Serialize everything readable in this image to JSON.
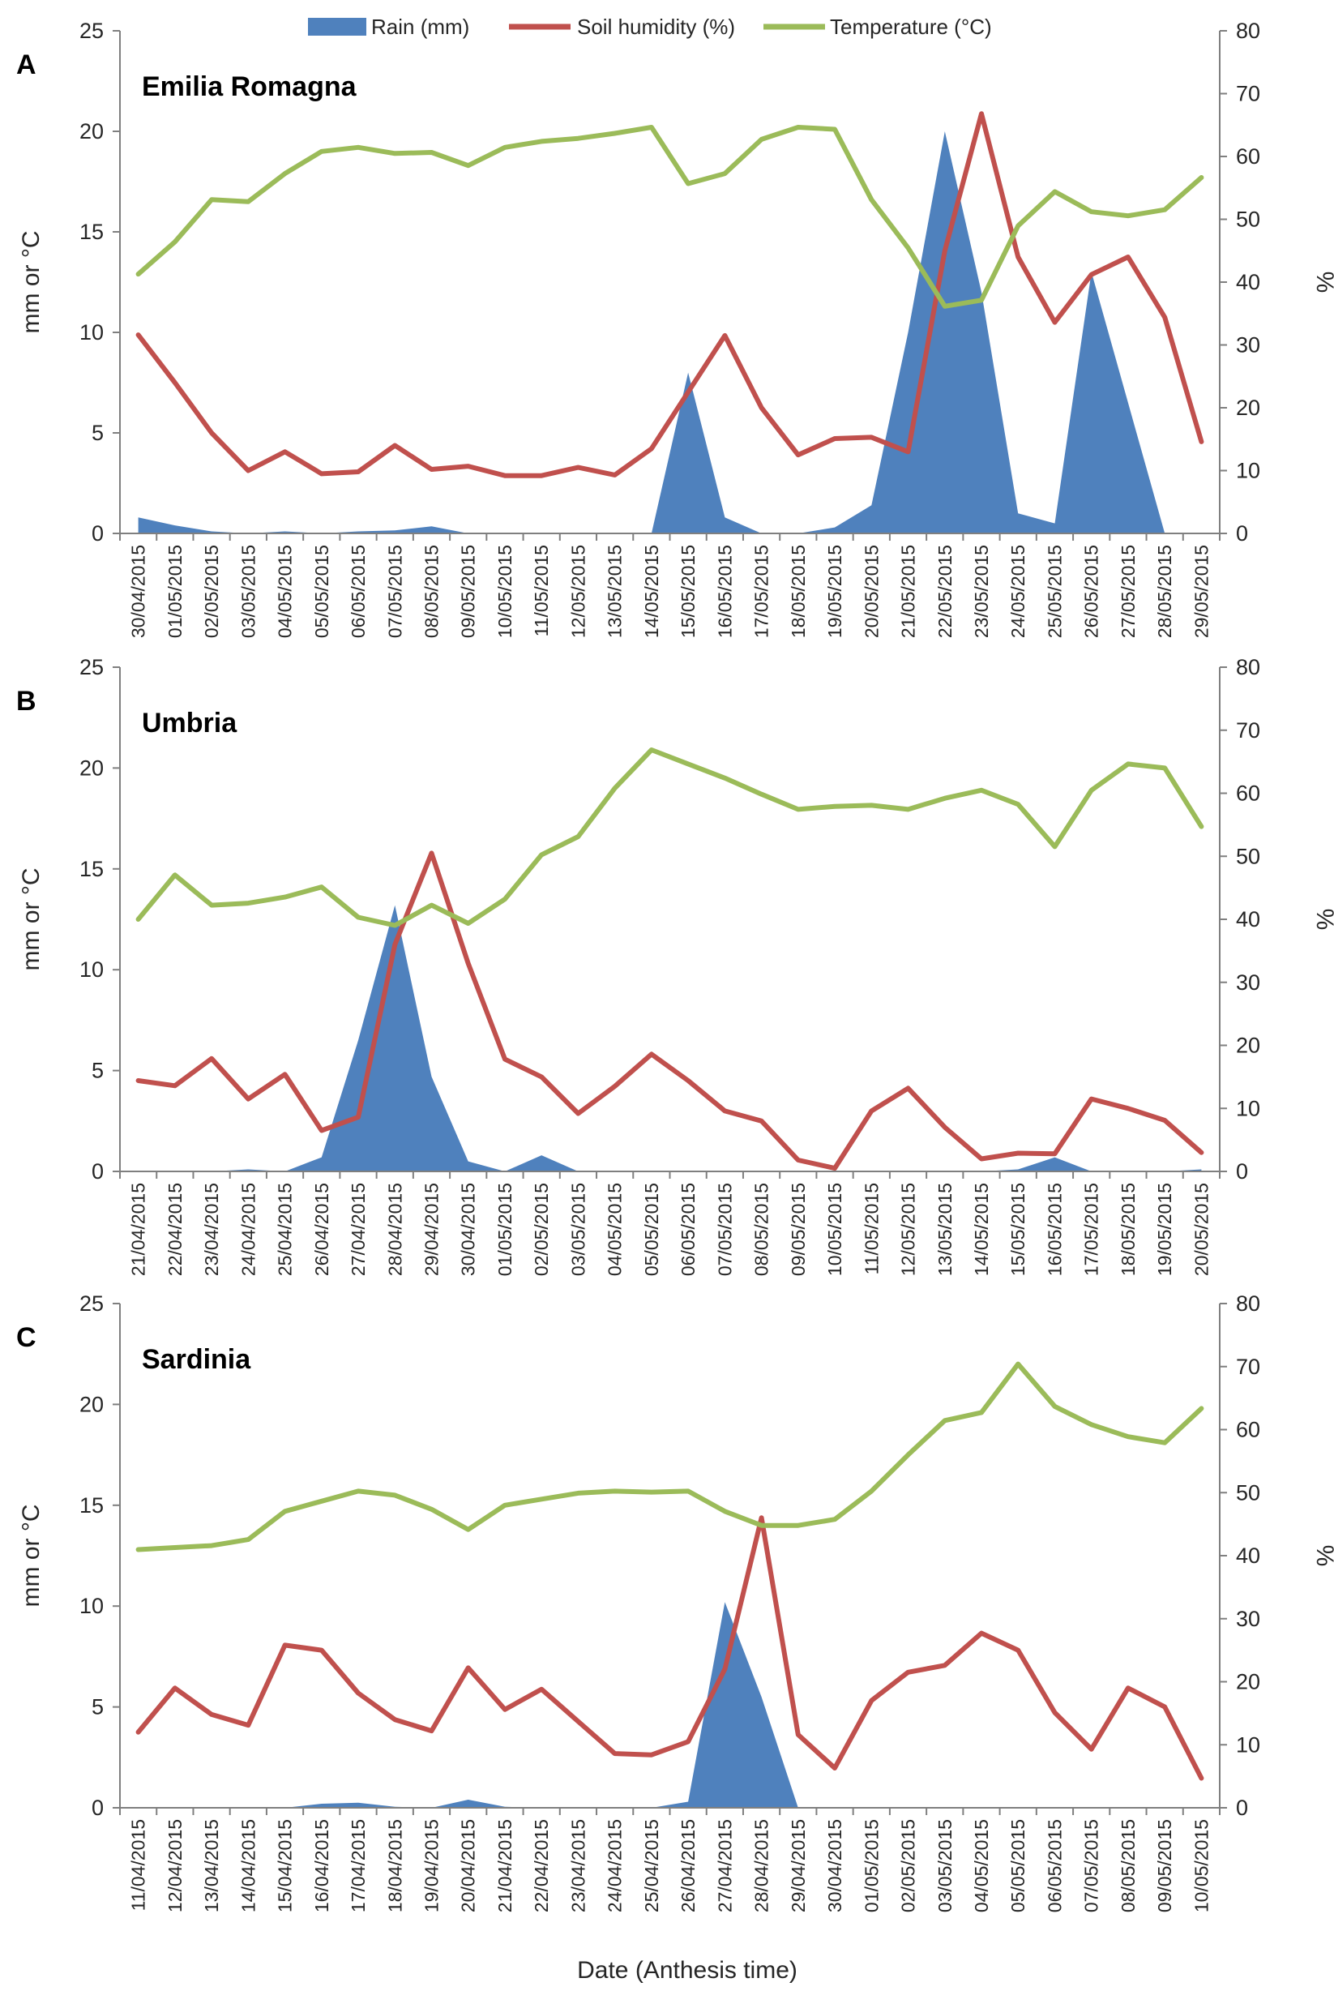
{
  "legend": [
    {
      "name": "Rain (mm)",
      "color": "#4f81bd",
      "kind": "area"
    },
    {
      "name": "Soil humidity (%)",
      "color": "#c0504d",
      "kind": "line"
    },
    {
      "name": "Temperature (°C)",
      "color": "#9bbb59",
      "kind": "line"
    }
  ],
  "x_title": "Date (Anthesis time)",
  "chart_data": [
    {
      "type": "area",
      "panel": "A",
      "title": "Emilia Romagna",
      "ylabel_left": "mm or °C",
      "ylabel_right": "%",
      "ylim_left": [
        0,
        25
      ],
      "ylim_right": [
        0,
        80
      ],
      "yticks_left": [
        "0",
        "5",
        "10",
        "15",
        "20",
        "25"
      ],
      "yticks_right": [
        "0",
        "10",
        "20",
        "30",
        "40",
        "50",
        "60",
        "70",
        "80"
      ],
      "dates": [
        "30/04/2015",
        "01/05/2015",
        "02/05/2015",
        "03/05/2015",
        "04/05/2015",
        "05/05/2015",
        "06/05/2015",
        "07/05/2015",
        "08/05/2015",
        "09/05/2015",
        "10/05/2015",
        "11/05/2015",
        "12/05/2015",
        "13/05/2015",
        "14/05/2015",
        "15/05/2015",
        "16/05/2015",
        "17/05/2015",
        "18/05/2015",
        "19/05/2015",
        "20/05/2015",
        "21/05/2015",
        "22/05/2015",
        "23/05/2015",
        "24/05/2015",
        "25/05/2015",
        "26/05/2015",
        "27/05/2015",
        "28/05/2015",
        "29/05/2015"
      ],
      "rain": [
        0.8,
        0.4,
        0.1,
        0,
        0.1,
        0,
        0.1,
        0.15,
        0.35,
        0,
        0,
        0,
        0,
        0,
        0,
        8.0,
        0.8,
        0,
        0,
        0.3,
        1.4,
        10.0,
        20.0,
        12.0,
        1.0,
        0.5,
        13.0,
        6.5,
        0,
        null
      ],
      "humidity": [
        31.6,
        24.0,
        16.0,
        10.0,
        13.0,
        9.5,
        9.8,
        14.0,
        10.2,
        10.7,
        9.2,
        9.2,
        10.5,
        9.3,
        13.5,
        22.5,
        31.5,
        20.0,
        12.5,
        15.1,
        15.3,
        13.0,
        45.0,
        66.8,
        44.0,
        33.6,
        41.2,
        44.0,
        34.4,
        14.6
      ],
      "temperature": [
        12.9,
        14.5,
        16.6,
        16.5,
        17.9,
        19.0,
        19.2,
        18.9,
        18.95,
        18.3,
        19.2,
        19.5,
        19.65,
        19.9,
        20.2,
        17.4,
        17.9,
        19.6,
        20.2,
        20.1,
        16.6,
        14.2,
        11.3,
        11.6,
        15.3,
        17.0,
        16.0,
        15.8,
        16.1,
        17.7
      ]
    },
    {
      "type": "area",
      "panel": "B",
      "title": "Umbria",
      "ylabel_left": "mm or °C",
      "ylabel_right": "%",
      "ylim_left": [
        0,
        25
      ],
      "ylim_right": [
        0,
        80
      ],
      "yticks_left": [
        "0",
        "5",
        "10",
        "15",
        "20",
        "25"
      ],
      "yticks_right": [
        "0",
        "10",
        "20",
        "30",
        "40",
        "50",
        "60",
        "70",
        "80"
      ],
      "dates": [
        "21/04/2015",
        "22/04/2015",
        "23/04/2015",
        "24/04/2015",
        "25/04/2015",
        "26/04/2015",
        "27/04/2015",
        "28/04/2015",
        "29/04/2015",
        "30/04/2015",
        "01/05/2015",
        "02/05/2015",
        "03/05/2015",
        "04/05/2015",
        "05/05/2015",
        "06/05/2015",
        "07/05/2015",
        "08/05/2015",
        "09/05/2015",
        "10/05/2015",
        "11/05/2015",
        "12/05/2015",
        "13/05/2015",
        "14/05/2015",
        "15/05/2015",
        "16/05/2015",
        "17/05/2015",
        "18/05/2015",
        "19/05/2015",
        "20/05/2015"
      ],
      "rain": [
        0,
        0,
        0,
        0.1,
        0,
        0.7,
        6.5,
        13.2,
        4.7,
        0.5,
        0,
        0.8,
        0,
        0,
        0,
        0,
        0,
        0,
        0,
        0,
        0,
        0,
        0,
        0,
        0.1,
        0.7,
        0,
        0,
        0,
        0.1
      ],
      "humidity": [
        14.4,
        13.6,
        17.9,
        11.5,
        15.4,
        6.5,
        8.6,
        36.0,
        50.5,
        33.0,
        17.8,
        15.0,
        9.2,
        13.5,
        18.6,
        14.4,
        9.6,
        8.0,
        1.8,
        0.5,
        9.6,
        13.2,
        7.0,
        2.0,
        2.9,
        2.8,
        11.5,
        10.0,
        8.1,
        3.0
      ],
      "temperature": [
        12.5,
        14.7,
        13.2,
        13.3,
        13.6,
        14.1,
        12.6,
        12.2,
        13.2,
        12.3,
        13.5,
        15.7,
        16.6,
        19.0,
        20.9,
        20.2,
        19.5,
        18.7,
        17.95,
        18.1,
        18.15,
        17.95,
        18.5,
        18.9,
        18.2,
        16.1,
        18.9,
        20.2,
        20.0,
        17.1
      ]
    },
    {
      "type": "area",
      "panel": "C",
      "title": "Sardinia",
      "ylabel_left": "mm or °C",
      "ylabel_right": "%",
      "ylim_left": [
        0,
        25
      ],
      "ylim_right": [
        0,
        80
      ],
      "yticks_left": [
        "0",
        "5",
        "10",
        "15",
        "20",
        "25"
      ],
      "yticks_right": [
        "0",
        "10",
        "20",
        "30",
        "40",
        "50",
        "60",
        "70",
        "80"
      ],
      "dates": [
        "11/04/2015",
        "12/04/2015",
        "13/04/2015",
        "14/04/2015",
        "15/04/2015",
        "16/04/2015",
        "17/04/2015",
        "18/04/2015",
        "19/04/2015",
        "20/04/2015",
        "21/04/2015",
        "22/04/2015",
        "23/04/2015",
        "24/04/2015",
        "25/04/2015",
        "26/04/2015",
        "27/04/2015",
        "28/04/2015",
        "29/04/2015",
        "30/04/2015",
        "01/05/2015",
        "02/05/2015",
        "03/05/2015",
        "04/05/2015",
        "05/05/2015",
        "06/05/2015",
        "07/05/2015",
        "08/05/2015",
        "09/05/2015",
        "10/05/2015"
      ],
      "rain": [
        0,
        0,
        0,
        0,
        0,
        0.2,
        0.25,
        0.05,
        0,
        0.4,
        0.05,
        0,
        0,
        0,
        0,
        0.3,
        10.2,
        5.5,
        0,
        null,
        null,
        null,
        null,
        null,
        null,
        null,
        null,
        null,
        null,
        null
      ],
      "humidity": [
        12.0,
        19.0,
        14.8,
        13.1,
        25.8,
        25.0,
        18.2,
        14.0,
        12.2,
        22.2,
        15.6,
        18.8,
        13.7,
        8.6,
        8.4,
        10.5,
        22.0,
        46.0,
        11.6,
        6.3,
        17.0,
        21.5,
        22.6,
        27.7,
        25.0,
        15.1,
        9.3,
        19.0,
        16.0,
        4.7
      ],
      "temperature": [
        12.8,
        12.9,
        13.0,
        13.3,
        14.7,
        15.2,
        15.7,
        15.5,
        14.8,
        13.8,
        15.0,
        15.3,
        15.6,
        15.7,
        15.65,
        15.7,
        14.7,
        14.0,
        14.0,
        14.3,
        15.7,
        17.5,
        19.2,
        19.6,
        22.0,
        19.9,
        19.0,
        18.4,
        18.1,
        19.8
      ]
    }
  ]
}
